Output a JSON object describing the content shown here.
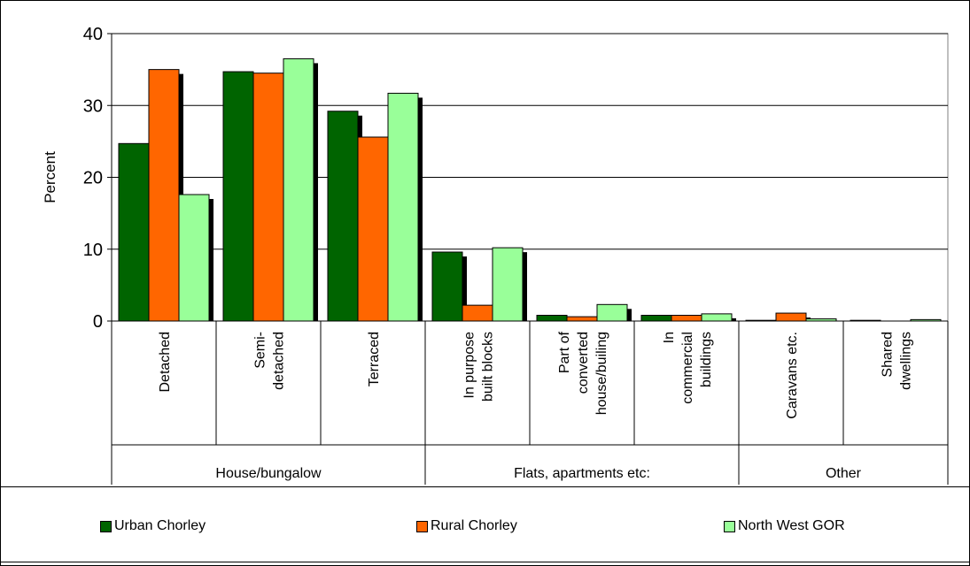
{
  "chart_data": {
    "type": "bar",
    "ylabel": "Percent",
    "ylim": [
      0,
      40
    ],
    "yticks": [
      0,
      10,
      20,
      30,
      40
    ],
    "grid": true,
    "legend_position": "bottom",
    "categories": [
      "Detached",
      "Semi-detached",
      "Terraced",
      "In purpose built blocks",
      "Part of converted house/builing",
      "In commercial buildings",
      "Caravans etc.",
      "Shared dwellings"
    ],
    "category_label_lines": [
      [
        "Detached"
      ],
      [
        "Semi-",
        "detached"
      ],
      [
        "Terraced"
      ],
      [
        "In purpose",
        "built blocks"
      ],
      [
        "Part of",
        "converted",
        "house/builing"
      ],
      [
        "In",
        "commercial",
        "buildings"
      ],
      [
        "Caravans etc."
      ],
      [
        "Shared",
        "dwellings"
      ]
    ],
    "groups": [
      {
        "label": "House/bungalow",
        "span": 3
      },
      {
        "label": "Flats, apartments etc:",
        "span": 3
      },
      {
        "label": "Other",
        "span": 2
      }
    ],
    "series": [
      {
        "name": "Urban Chorley",
        "color": "#006400",
        "values": [
          24.7,
          34.7,
          29.2,
          9.6,
          0.8,
          0.8,
          0.1,
          0.1
        ]
      },
      {
        "name": "Rural Chorley",
        "color": "#ff6600",
        "values": [
          35.0,
          34.5,
          25.6,
          2.2,
          0.6,
          0.8,
          1.1,
          0.0
        ]
      },
      {
        "name": "North West GOR",
        "color": "#99ff99",
        "values": [
          17.6,
          36.5,
          31.7,
          10.2,
          2.3,
          1.0,
          0.3,
          0.2
        ]
      }
    ]
  }
}
